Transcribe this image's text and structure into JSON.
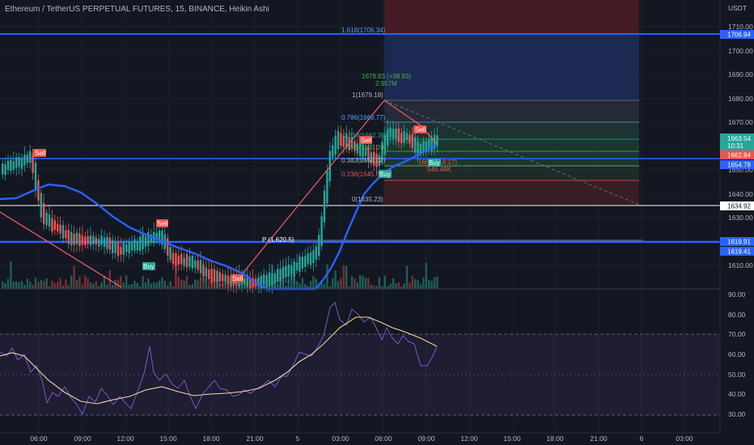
{
  "header": {
    "symbol": "Ethereum / TetherUS PERPETUAL FUTURES, 15, BINANCE, Heikin Ashi",
    "currency": "USDT"
  },
  "price_axis": {
    "ticks": [
      "1710.00",
      "1700.00",
      "1690.00",
      "1680.00",
      "1670.00",
      "1660.00",
      "1650.00",
      "1640.00",
      "1630.00",
      "1620.00",
      "1610.00"
    ],
    "tags": {
      "top_line": "1706.94",
      "current": "1663.54",
      "countdown": "10:31",
      "sell_line": "1662.84",
      "support_line": "1654.78",
      "white_line": "1634.92",
      "pivot_a": "1619.91",
      "pivot_b": "1619.41"
    }
  },
  "rsi_axis": {
    "ticks": [
      "90.00",
      "80.00",
      "70.00",
      "60.00",
      "50.00",
      "40.00",
      "30.00"
    ]
  },
  "time_axis": {
    "ticks": [
      "06:00",
      "09:00",
      "12:00",
      "15:00",
      "18:00",
      "21:00",
      "5",
      "03:00",
      "06:00",
      "09:00",
      "12:00",
      "15:00",
      "18:00",
      "21:00",
      "6",
      "03:00"
    ]
  },
  "fib": {
    "l1618": "1.618(1706.34)",
    "target": "1678.83 (+98.83)",
    "target_sub": "2.957M",
    "l1": "1(1679.18)",
    "l0786": "0.786(1669.77)",
    "l0618": "0.618(1662.39)",
    "l05": "0.5(1657.20)",
    "l0382": "0.382(1652.02)",
    "l0236": "0.236(1645.62)",
    "l0": "0(1635.23)",
    "pivot": "P (1,620.5)",
    "stop": "1663 (-18.17)",
    "stop_sub": "546.48K"
  },
  "signals": {
    "sell": "Sell",
    "buy": "Buy"
  },
  "colors": {
    "bg": "#131722",
    "up": "#26a69a",
    "down": "#ef5350",
    "blue_line": "#2962ff",
    "rsi": "#7e57c2",
    "rsi_ma": "#f5d6a0"
  }
}
